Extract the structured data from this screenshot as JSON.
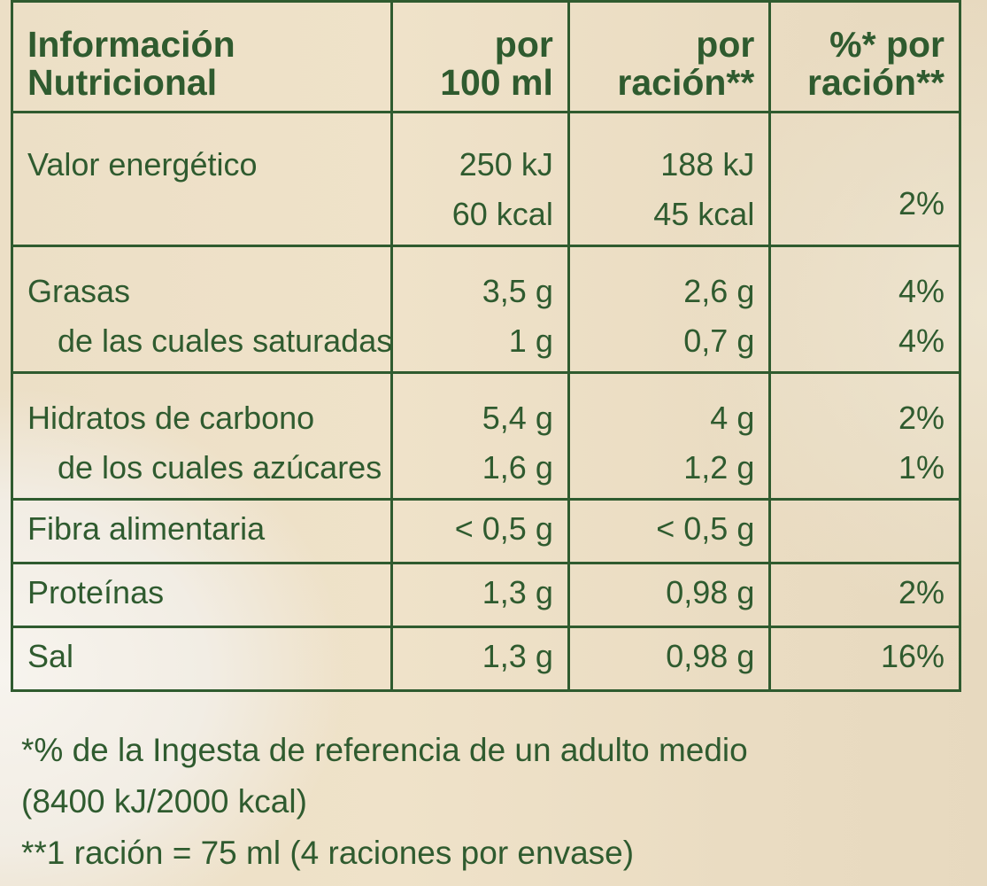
{
  "table": {
    "headers": {
      "name": [
        "Información",
        "Nutricional"
      ],
      "per_100": [
        "por",
        "100 ml"
      ],
      "per_serving": [
        "por",
        "ración**"
      ],
      "pct_serving": [
        "%* por",
        "ración**"
      ]
    },
    "rows": [
      {
        "name": [
          "Valor energético"
        ],
        "per_100": [
          "250 kJ",
          "60 kcal"
        ],
        "per_serving": [
          "188 kJ",
          "45 kcal"
        ],
        "pct_serving": [
          "2%"
        ]
      },
      {
        "name": [
          "Grasas",
          "de las cuales saturadas"
        ],
        "per_100": [
          "3,5 g",
          "1 g"
        ],
        "per_serving": [
          "2,6 g",
          "0,7 g"
        ],
        "pct_serving": [
          "4%",
          "4%"
        ]
      },
      {
        "name": [
          "Hidratos de carbono",
          "de los cuales azúcares"
        ],
        "per_100": [
          "5,4 g",
          "1,6 g"
        ],
        "per_serving": [
          "4 g",
          "1,2 g"
        ],
        "pct_serving": [
          "2%",
          "1%"
        ]
      },
      {
        "name": [
          "Fibra alimentaria"
        ],
        "per_100": [
          "< 0,5 g"
        ],
        "per_serving": [
          "< 0,5 g"
        ],
        "pct_serving": [
          ""
        ]
      },
      {
        "name": [
          "Proteínas"
        ],
        "per_100": [
          "1,3 g"
        ],
        "per_serving": [
          "0,98 g"
        ],
        "pct_serving": [
          "2%"
        ]
      },
      {
        "name": [
          "Sal"
        ],
        "per_100": [
          "1,3 g"
        ],
        "per_serving": [
          "0,98 g"
        ],
        "pct_serving": [
          "16%"
        ]
      }
    ]
  },
  "footnotes": [
    "*% de la Ingesta de referencia de un adulto medio",
    "(8400 kJ/2000 kcal)",
    "**1 ración = 75 ml (4 raciones por envase)"
  ],
  "colors": {
    "ink": "#2f5b2f",
    "background": "#ecdfc6"
  }
}
